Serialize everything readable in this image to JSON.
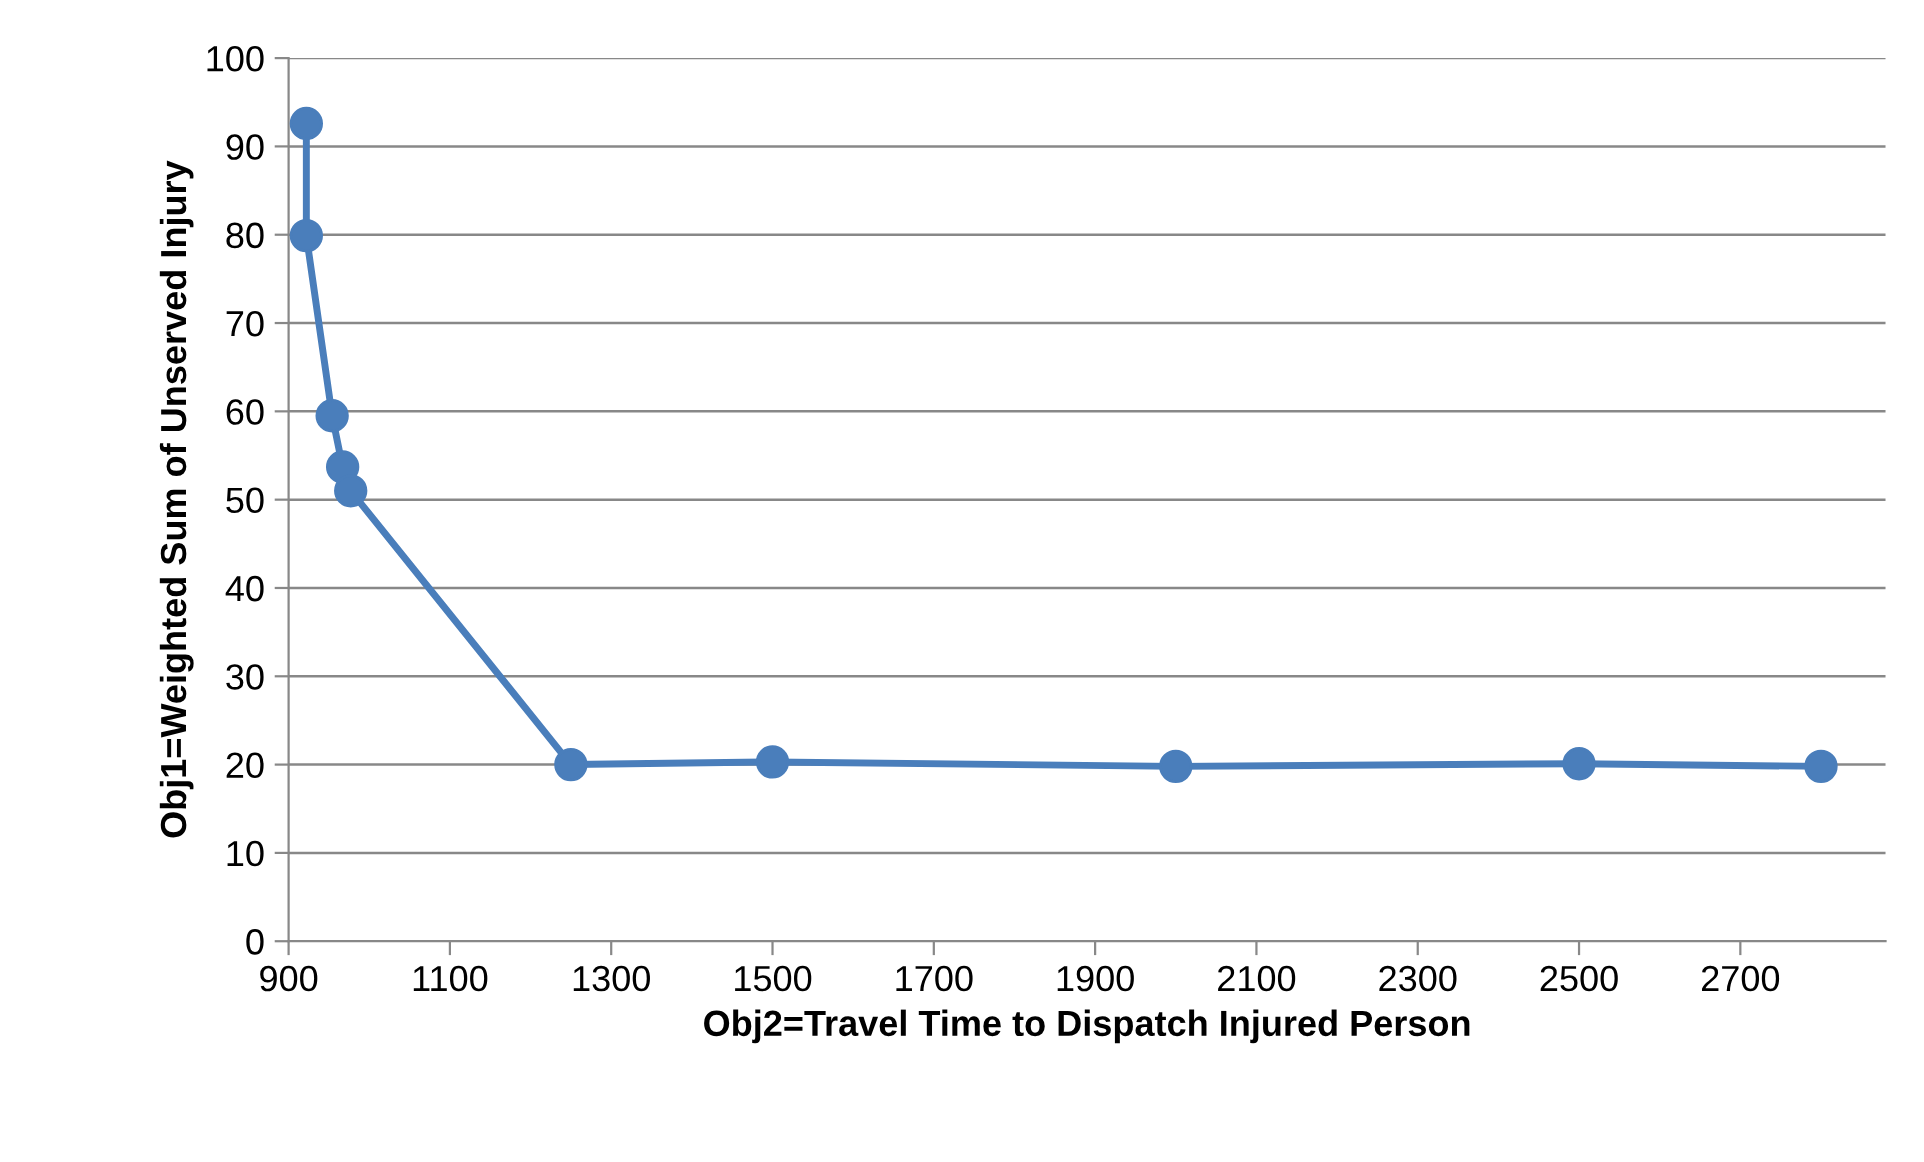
{
  "chart_data": {
    "type": "line",
    "xlabel": "Obj2=Travel Time to Dispatch Injured Person",
    "ylabel": "Obj1=Weighted Sum of Unserved Injury",
    "series": [
      {
        "color": "#4a7ebb",
        "x": [
          922,
          922,
          954,
          967,
          977,
          1250,
          1500,
          2000,
          2500,
          2800
        ],
        "values": [
          92.6,
          79.9,
          59.5,
          53.7,
          51,
          20,
          20.3,
          19.8,
          20.1,
          19.8
        ]
      }
    ],
    "xlim": [
      900,
      2880
    ],
    "xticks": [
      900,
      1100,
      1300,
      1500,
      1700,
      1900,
      2100,
      2300,
      2500,
      2700
    ],
    "ylim": [
      0,
      100
    ],
    "yticks": [
      0,
      10,
      20,
      30,
      40,
      50,
      60,
      70,
      80,
      90,
      100
    ],
    "grid": "y",
    "marker": "circle",
    "line_style": "solid",
    "legend": false
  }
}
